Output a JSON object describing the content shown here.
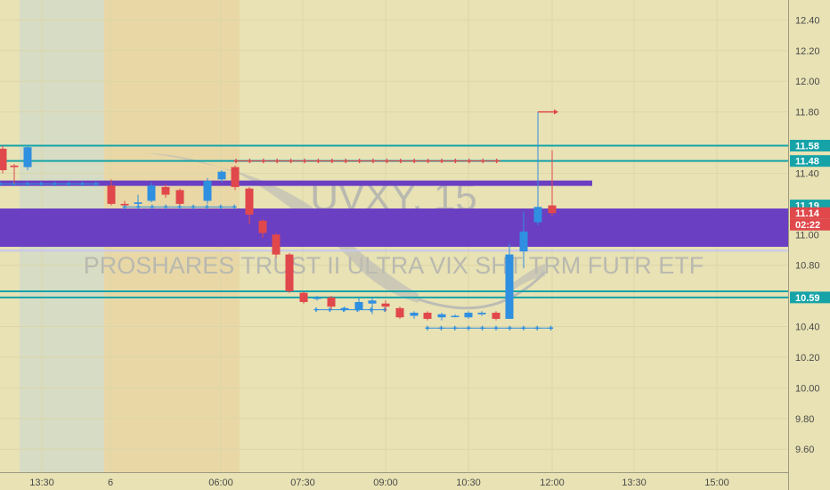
{
  "chart_data": {
    "type": "candlestick",
    "watermark": {
      "symbol": "UVXY, 15",
      "name": "PROSHARES TRUST II ULTRA VIX SHT TRM FUTR ETF"
    },
    "x_tick_labels": [
      "13:30",
      "6",
      "06:00",
      "07:30",
      "09:00",
      "10:30",
      "12:00",
      "13:30",
      "15:00"
    ],
    "y_tick_labels": [
      "12.40",
      "12.20",
      "12.00",
      "11.80",
      "11.40",
      "11.00",
      "10.80",
      "10.40",
      "10.20",
      "10.00",
      "9.80",
      "9.60"
    ],
    "ylim": [
      9.45,
      12.53
    ],
    "price_badges": [
      {
        "label": "11.58",
        "value": 11.58,
        "color": "#16a3a8"
      },
      {
        "label": "11.48",
        "value": 11.48,
        "color": "#16a3a8"
      },
      {
        "label": "11.19",
        "value": 11.19,
        "color": "#16a3a8"
      },
      {
        "label": "11.14",
        "value": 11.14,
        "color": "#e0484b"
      },
      {
        "label": "02:22",
        "value": 11.07,
        "color": "#e0484b"
      },
      {
        "label": "10.59",
        "value": 10.59,
        "color": "#16a3a8"
      }
    ],
    "horizontal_levels": [
      11.58,
      11.48,
      10.895,
      10.63,
      10.59
    ],
    "zone": {
      "from": 10.92,
      "to": 11.17,
      "color": "#6a3fc2"
    },
    "thin_band": {
      "value": 11.335,
      "color": "#6a3fc2"
    },
    "colors": {
      "up": "#2f8fe0",
      "down": "#e0484b",
      "level": "#16a3a8"
    },
    "candles": [
      {
        "x": 3,
        "o": 11.56,
        "h": 11.58,
        "l": 11.4,
        "c": 11.42
      },
      {
        "x": 16,
        "o": 11.45,
        "h": 11.46,
        "l": 11.33,
        "c": 11.44
      },
      {
        "x": 31,
        "o": 11.44,
        "h": 11.58,
        "l": 11.42,
        "c": 11.57
      },
      {
        "x": 125,
        "o": 11.32,
        "h": 11.36,
        "l": 11.19,
        "c": 11.2
      },
      {
        "x": 140,
        "o": 11.2,
        "h": 11.22,
        "l": 11.19,
        "c": 11.19
      },
      {
        "x": 155,
        "o": 11.2,
        "h": 11.26,
        "l": 11.18,
        "c": 11.21
      },
      {
        "x": 170,
        "o": 11.22,
        "h": 11.34,
        "l": 11.21,
        "c": 11.32
      },
      {
        "x": 186,
        "o": 11.31,
        "h": 11.33,
        "l": 11.24,
        "c": 11.26
      },
      {
        "x": 202,
        "o": 11.29,
        "h": 11.3,
        "l": 11.19,
        "c": 11.2
      },
      {
        "x": 233,
        "o": 11.22,
        "h": 11.37,
        "l": 11.2,
        "c": 11.35
      },
      {
        "x": 249,
        "o": 11.36,
        "h": 11.42,
        "l": 11.34,
        "c": 11.41
      },
      {
        "x": 264,
        "o": 11.44,
        "h": 11.45,
        "l": 11.29,
        "c": 11.31
      },
      {
        "x": 280,
        "o": 11.3,
        "h": 11.31,
        "l": 11.07,
        "c": 11.13
      },
      {
        "x": 295,
        "o": 11.09,
        "h": 11.1,
        "l": 10.98,
        "c": 11.01
      },
      {
        "x": 310,
        "o": 11.0,
        "h": 11.01,
        "l": 10.85,
        "c": 10.87
      },
      {
        "x": 325,
        "o": 10.87,
        "h": 10.88,
        "l": 10.62,
        "c": 10.63
      },
      {
        "x": 341,
        "o": 10.62,
        "h": 10.63,
        "l": 10.55,
        "c": 10.56
      },
      {
        "x": 356,
        "o": 10.58,
        "h": 10.6,
        "l": 10.57,
        "c": 10.59
      },
      {
        "x": 372,
        "o": 10.59,
        "h": 10.6,
        "l": 10.51,
        "c": 10.53
      },
      {
        "x": 387,
        "o": 10.51,
        "h": 10.53,
        "l": 10.5,
        "c": 10.52
      },
      {
        "x": 403,
        "o": 10.51,
        "h": 10.59,
        "l": 10.5,
        "c": 10.56
      },
      {
        "x": 418,
        "o": 10.55,
        "h": 10.59,
        "l": 10.48,
        "c": 10.57
      },
      {
        "x": 433,
        "o": 10.55,
        "h": 10.57,
        "l": 10.5,
        "c": 10.53
      },
      {
        "x": 449,
        "o": 10.52,
        "h": 10.53,
        "l": 10.45,
        "c": 10.46
      },
      {
        "x": 465,
        "o": 10.47,
        "h": 10.5,
        "l": 10.45,
        "c": 10.49
      },
      {
        "x": 480,
        "o": 10.49,
        "h": 10.5,
        "l": 10.44,
        "c": 10.45
      },
      {
        "x": 496,
        "o": 10.46,
        "h": 10.49,
        "l": 10.44,
        "c": 10.48
      },
      {
        "x": 511,
        "o": 10.47,
        "h": 10.48,
        "l": 10.46,
        "c": 10.47
      },
      {
        "x": 526,
        "o": 10.46,
        "h": 10.5,
        "l": 10.45,
        "c": 10.49
      },
      {
        "x": 541,
        "o": 10.48,
        "h": 10.5,
        "l": 10.47,
        "c": 10.49
      },
      {
        "x": 557,
        "o": 10.49,
        "h": 10.5,
        "l": 10.44,
        "c": 10.45
      },
      {
        "x": 572,
        "o": 10.45,
        "h": 10.94,
        "l": 10.45,
        "c": 10.87
      },
      {
        "x": 588,
        "o": 10.89,
        "h": 11.15,
        "l": 10.78,
        "c": 11.02
      },
      {
        "x": 604,
        "o": 11.08,
        "h": 11.8,
        "l": 11.06,
        "c": 11.18
      },
      {
        "x": 620,
        "o": 11.19,
        "h": 11.55,
        "l": 11.12,
        "c": 11.14
      }
    ],
    "marker_rows": [
      {
        "value": 11.48,
        "from": 265,
        "to": 562,
        "color": "#e0484b",
        "kind": "plus"
      },
      {
        "value": 11.33,
        "from": 0,
        "to": 112,
        "color": "#2f8fe0",
        "kind": "plus"
      },
      {
        "value": 11.18,
        "from": 140,
        "to": 265,
        "color": "#2f8fe0",
        "kind": "plus"
      },
      {
        "value": 10.51,
        "from": 355,
        "to": 432,
        "color": "#2f8fe0",
        "kind": "plus"
      },
      {
        "value": 10.39,
        "from": 480,
        "to": 620,
        "color": "#2f8fe0",
        "kind": "plus"
      }
    ],
    "target_arrow": {
      "value": 11.8,
      "from": 604,
      "to": 622
    }
  }
}
